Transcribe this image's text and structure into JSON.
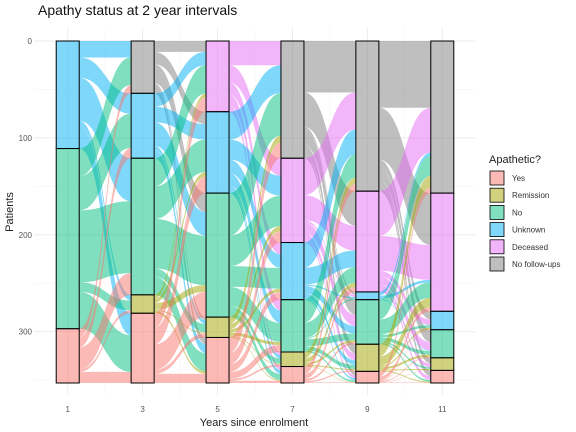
{
  "chart_data": {
    "type": "alluvial",
    "title": "Apathy status at 2 year intervals",
    "xlabel": "Years since enrolment",
    "ylabel": "Patients",
    "x": [
      1,
      3,
      5,
      7,
      9,
      11
    ],
    "y_ticks": [
      0,
      100,
      200,
      300
    ],
    "ylim": [
      0,
      353
    ],
    "total_patients": 353,
    "grid": true,
    "y_axis_reversed": true,
    "legend": {
      "title": "Apathetic?",
      "position": "right",
      "entries": [
        {
          "name": "Yes",
          "color": "#F8766D"
        },
        {
          "name": "Remission",
          "color": "#A3A500"
        },
        {
          "name": "No",
          "color": "#00BF7D"
        },
        {
          "name": "Unknown",
          "color": "#00B0F6"
        },
        {
          "name": "Deceased",
          "color": "#E76BF3"
        },
        {
          "name": "No follow-ups",
          "color": "#7F7F7F"
        }
      ]
    },
    "stack_order_top_to_bottom": [
      "No follow-ups",
      "Deceased",
      "Unknown",
      "No",
      "Remission",
      "Yes"
    ],
    "stratum_counts": [
      {
        "year": 1,
        "No follow-ups": 0,
        "Deceased": 0,
        "Unknown": 111,
        "No": 186,
        "Remission": 0,
        "Yes": 56
      },
      {
        "year": 3,
        "No follow-ups": 54,
        "Deceased": 0,
        "Unknown": 67,
        "No": 141,
        "Remission": 19,
        "Yes": 72
      },
      {
        "year": 5,
        "No follow-ups": 0,
        "Deceased": 73,
        "Unknown": 84,
        "No": 128,
        "Remission": 21,
        "Yes": 47
      },
      {
        "year": 7,
        "No follow-ups": 121,
        "Deceased": 87,
        "Unknown": 59,
        "No": 54,
        "Remission": 15,
        "Yes": 17
      },
      {
        "year": 9,
        "No follow-ups": 155,
        "Deceased": 104,
        "Unknown": 8,
        "No": 46,
        "Remission": 28,
        "Yes": 12
      },
      {
        "year": 11,
        "No follow-ups": 157,
        "Deceased": 122,
        "Unknown": 19,
        "No": 29,
        "Remission": 13,
        "Yes": 13
      }
    ]
  }
}
